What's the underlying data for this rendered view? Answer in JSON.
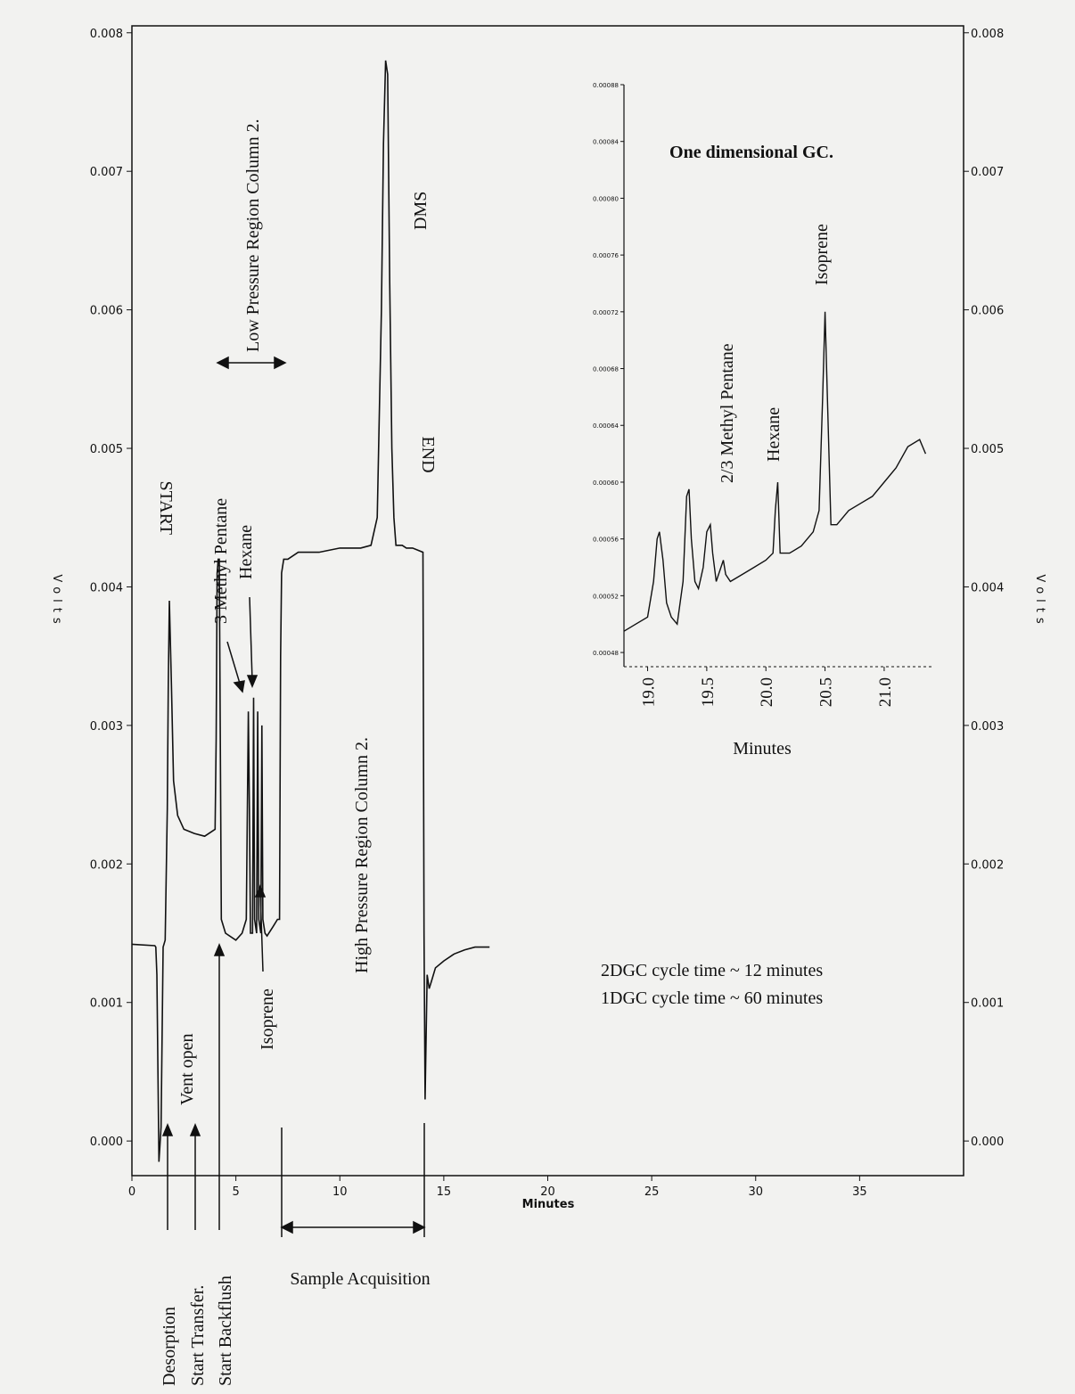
{
  "chart_data": [
    {
      "type": "line",
      "xlabel": "Minutes",
      "ylabel": "Volts",
      "ylabel_right": "Volts",
      "xlim": [
        0,
        40
      ],
      "ylim": [
        -0.00025,
        0.00805
      ],
      "x_ticks": [
        0,
        5,
        10,
        15,
        20,
        25,
        30,
        35
      ],
      "y_ticks": [
        0.0,
        0.001,
        0.002,
        0.003,
        0.004,
        0.005,
        0.006,
        0.007,
        0.008
      ],
      "y_tick_labels": [
        "0.000",
        "0.001",
        "0.002",
        "0.003",
        "0.004",
        "0.005",
        "0.006",
        "0.007",
        "0.008"
      ],
      "series": [
        {
          "x": [
            0,
            1.1,
            1.15,
            1.2,
            1.3,
            1.4,
            1.5,
            1.6,
            1.7,
            1.75,
            1.8,
            1.9,
            2.0,
            2.2,
            2.5,
            3.0,
            3.5,
            4.0,
            4.05,
            4.1,
            4.15,
            4.2,
            4.3,
            4.5,
            5.0,
            5.3,
            5.5,
            5.6,
            5.65,
            5.7,
            5.8,
            5.85,
            5.9,
            6.0,
            6.05,
            6.1,
            6.2,
            6.25,
            6.3,
            6.4,
            6.5,
            6.8,
            7.0,
            7.1,
            7.15,
            7.2,
            7.3,
            7.5,
            8,
            9,
            10,
            11,
            11.5,
            11.8,
            12.0,
            12.1,
            12.2,
            12.3,
            12.4,
            12.5,
            12.6,
            12.7,
            12.8,
            13.0,
            13.2,
            13.5,
            14.0,
            14.05,
            14.1,
            14.2,
            14.3,
            14.4,
            14.6,
            15.0,
            15.5,
            16.0,
            16.5,
            17.2
          ],
          "y": [
            0.00142,
            0.00141,
            0.0014,
            0.0012,
            -0.00015,
            0.0001,
            0.0014,
            0.00145,
            0.0024,
            0.0033,
            0.0039,
            0.0033,
            0.0026,
            0.00235,
            0.00225,
            0.00222,
            0.0022,
            0.00225,
            0.0029,
            0.0041,
            0.0042,
            0.0042,
            0.0016,
            0.0015,
            0.00145,
            0.0015,
            0.0016,
            0.0031,
            0.0024,
            0.0015,
            0.0015,
            0.0032,
            0.0016,
            0.0015,
            0.0031,
            0.0016,
            0.0015,
            0.003,
            0.0016,
            0.0015,
            0.00148,
            0.00155,
            0.0016,
            0.0016,
            0.0035,
            0.0041,
            0.0042,
            0.0042,
            0.00425,
            0.00425,
            0.00428,
            0.00428,
            0.0043,
            0.0045,
            0.006,
            0.0072,
            0.0078,
            0.0077,
            0.0062,
            0.005,
            0.0045,
            0.0043,
            0.0043,
            0.0043,
            0.00428,
            0.00428,
            0.00425,
            0.0015,
            0.0003,
            0.0012,
            0.0011,
            0.00115,
            0.00125,
            0.0013,
            0.00135,
            0.00138,
            0.0014,
            0.0014
          ]
        }
      ],
      "annotations": [
        "START",
        "Vent open",
        "3 Methyl Pentane",
        "Hexane",
        "Isoprene",
        "Low Pressure Region Column 2.",
        "High Pressure Region Column 2.",
        "DMS",
        "END",
        "Desorption",
        "Start Transfer.",
        "Start Backflush",
        "Sample Acquisition",
        "2DGC cycle time ~ 12 minutes",
        "1DGC cycle time ~ 60 minutes"
      ]
    },
    {
      "type": "line",
      "title": "One dimensional GC.",
      "xlabel": "Minutes",
      "xlim": [
        18.8,
        21.4
      ],
      "ylim": [
        0.00047,
        0.00088
      ],
      "x_ticks": [
        19.0,
        19.5,
        20.0,
        20.5,
        21.0
      ],
      "x_tick_labels": [
        "19.0",
        "19.5",
        "20.0",
        "20.5",
        "21.0"
      ],
      "y_ticks": [
        0.00048,
        0.00052,
        0.00056,
        0.0006,
        0.00064,
        0.00068,
        0.00072,
        0.00076,
        0.0008,
        0.00084,
        0.00088
      ],
      "y_tick_labels": [
        "0.00048",
        "0.00052",
        "0.00056",
        "0.00060",
        "0.00064",
        "0.00068",
        "0.00072",
        "0.00076",
        "0.00080",
        "0.00084",
        "0.00088"
      ],
      "series": [
        {
          "x": [
            18.8,
            18.9,
            19.0,
            19.05,
            19.08,
            19.1,
            19.13,
            19.16,
            19.2,
            19.25,
            19.3,
            19.33,
            19.35,
            19.37,
            19.4,
            19.43,
            19.47,
            19.5,
            19.53,
            19.55,
            19.58,
            19.62,
            19.64,
            19.66,
            19.7,
            19.8,
            19.9,
            20.0,
            20.06,
            20.08,
            20.1,
            20.12,
            20.2,
            20.3,
            20.4,
            20.45,
            20.48,
            20.5,
            20.52,
            20.55,
            20.6,
            20.7,
            20.8,
            20.9,
            21.0,
            21.1,
            21.2,
            21.3,
            21.35
          ],
          "y": [
            0.000495,
            0.0005,
            0.000505,
            0.00053,
            0.00056,
            0.000565,
            0.000545,
            0.000515,
            0.000505,
            0.0005,
            0.00053,
            0.00059,
            0.000595,
            0.00056,
            0.00053,
            0.000525,
            0.00054,
            0.000565,
            0.00057,
            0.00055,
            0.00053,
            0.00054,
            0.000545,
            0.000535,
            0.00053,
            0.000535,
            0.00054,
            0.000545,
            0.00055,
            0.00058,
            0.0006,
            0.00055,
            0.00055,
            0.000555,
            0.000565,
            0.00058,
            0.00066,
            0.00072,
            0.00066,
            0.00057,
            0.00057,
            0.00058,
            0.000585,
            0.00059,
            0.0006,
            0.00061,
            0.000625,
            0.00063,
            0.00062
          ]
        }
      ],
      "annotations": [
        "2/3 Methyl Pentane",
        "Hexane",
        "Isoprene"
      ]
    }
  ]
}
